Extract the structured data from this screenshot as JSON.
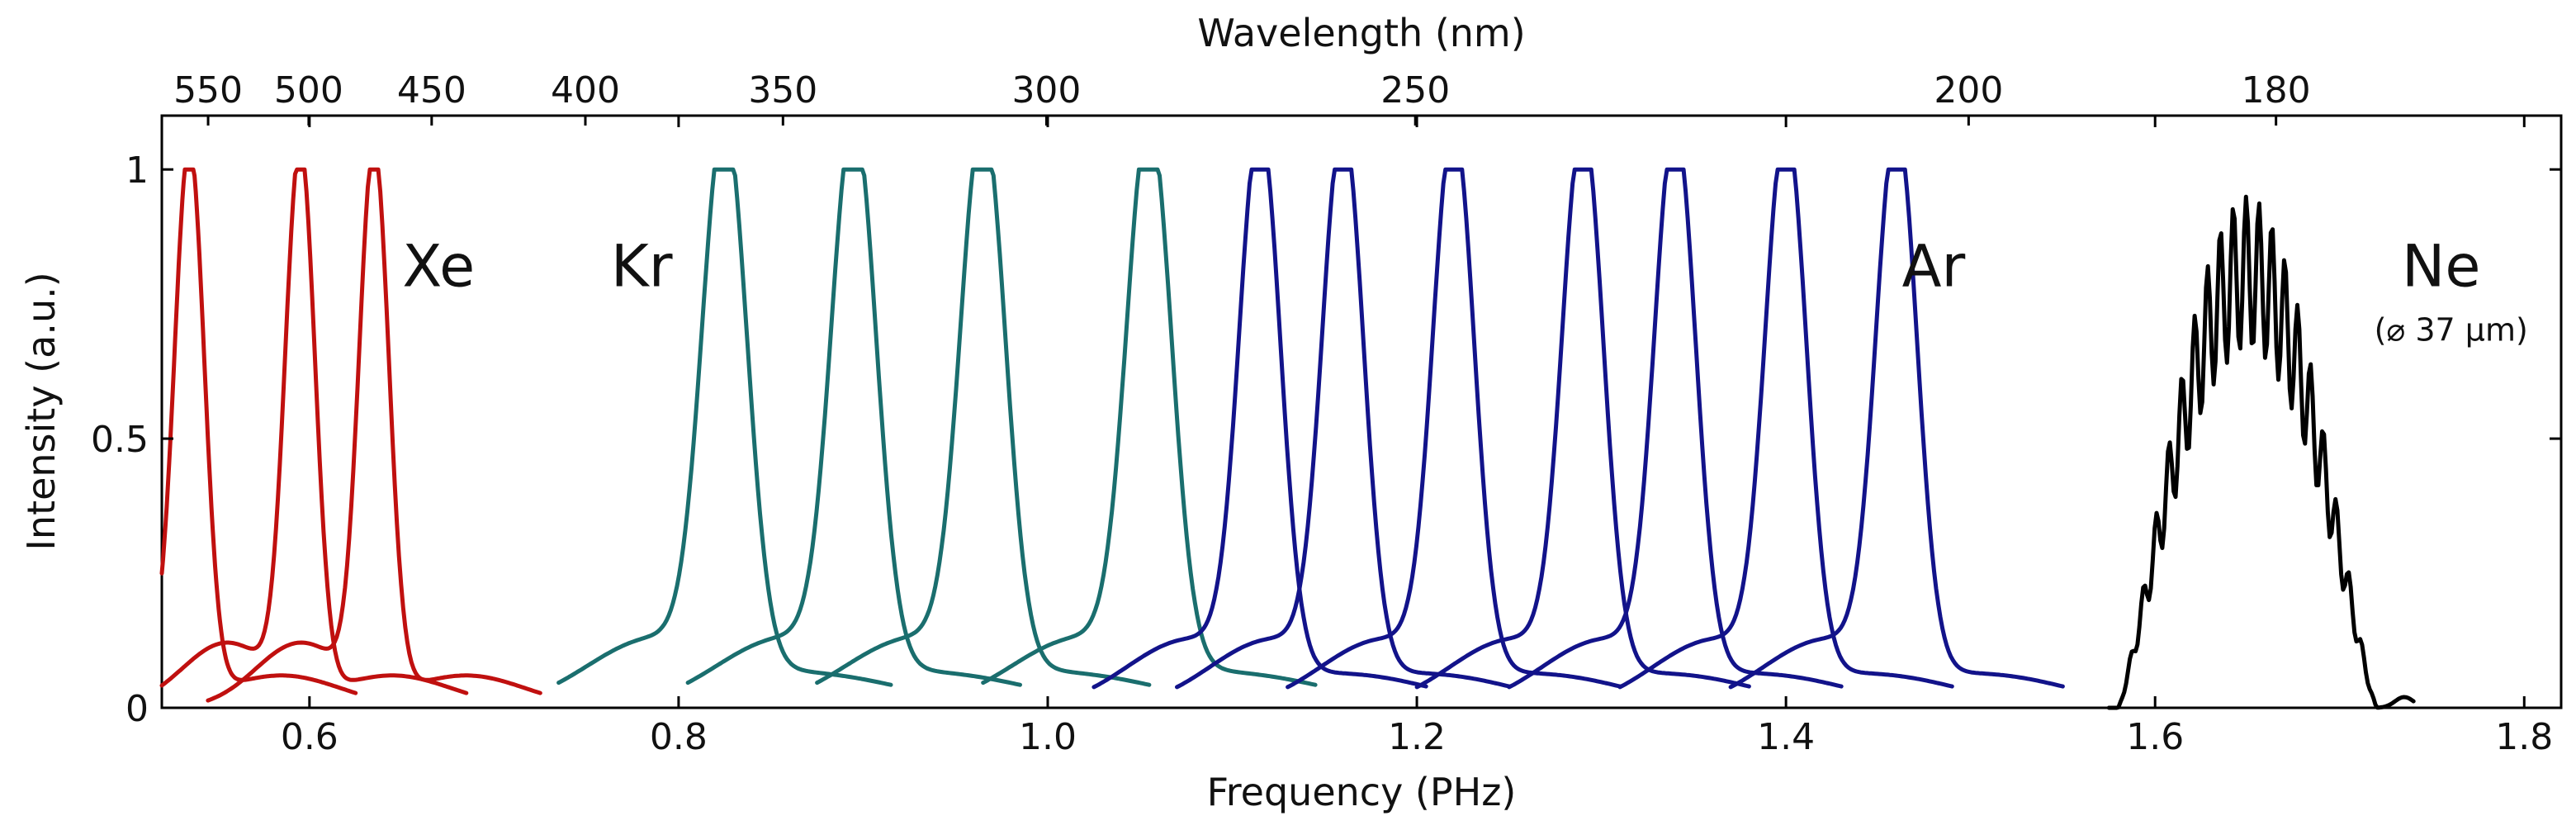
{
  "chart_data": {
    "type": "line",
    "xlabel": "Frequency (PHz)",
    "ylabel": "Intensity (a.u.)",
    "top_axis_label": "Wavelength (nm)",
    "xlim": [
      0.52,
      1.82
    ],
    "ylim": [
      0,
      1.1
    ],
    "x_ticks": [
      0.6,
      0.8,
      1.0,
      1.2,
      1.4,
      1.6,
      1.8
    ],
    "x_tick_labels": [
      "0.6",
      "0.8",
      "1.0",
      "1.2",
      "1.4",
      "1.6",
      "1.8"
    ],
    "y_ticks": [
      0,
      0.5,
      1
    ],
    "y_tick_labels": [
      "0",
      "0.5",
      "1"
    ],
    "top_ticks_nm": [
      550,
      500,
      450,
      400,
      350,
      300,
      250,
      200,
      180
    ],
    "top_tick_labels": [
      "550",
      "500",
      "450",
      "400",
      "350",
      "300",
      "250",
      "200",
      "180"
    ],
    "gases": [
      {
        "name": "Xe",
        "color": "#c0100f",
        "label_pos": [
          0.67,
          0.82
        ],
        "peaks": [
          0.535,
          0.595,
          0.635
        ]
      },
      {
        "name": "Kr",
        "color": "#1a6e6e",
        "label_pos": [
          0.78,
          0.82
        ],
        "peaks": [
          0.825,
          0.895,
          0.965,
          1.055
        ]
      },
      {
        "name": "Ar",
        "color": "#12138a",
        "label_pos": [
          1.48,
          0.82
        ],
        "peaks": [
          1.115,
          1.16,
          1.22,
          1.29,
          1.34,
          1.4,
          1.46
        ]
      },
      {
        "name": "Ne",
        "color": "#000000",
        "label_pos": [
          1.755,
          0.82
        ],
        "sublabel": "(⌀ 37  µm)",
        "peaks": [
          1.665
        ]
      }
    ]
  }
}
